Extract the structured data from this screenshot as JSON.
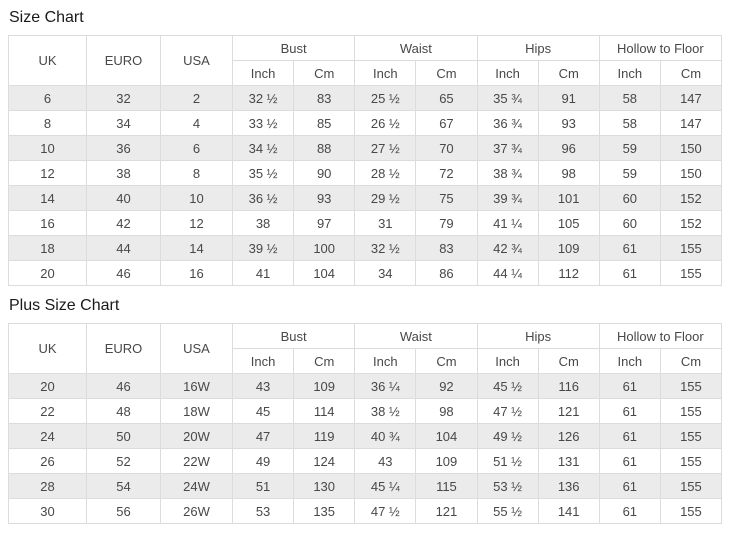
{
  "colors": {
    "stripe_row_bg": "#ebebeb",
    "table_border": "#dcdcdc",
    "cell_text": "#484848",
    "title_text": "#1a1a1a",
    "page_bg": "#ffffff"
  },
  "chart_data": [
    {
      "type": "table",
      "title": "Size Chart",
      "rowspan_columns": [
        "UK",
        "EURO",
        "USA"
      ],
      "group_columns": [
        "Bust",
        "Waist",
        "Hips",
        "Hollow to Floor"
      ],
      "sub_columns": [
        "Inch",
        "Cm"
      ],
      "rows": [
        [
          "6",
          "32",
          "2",
          "32 ½",
          "83",
          "25 ½",
          "65",
          "35 ¾",
          "91",
          "58",
          "147"
        ],
        [
          "8",
          "34",
          "4",
          "33 ½",
          "85",
          "26 ½",
          "67",
          "36 ¾",
          "93",
          "58",
          "147"
        ],
        [
          "10",
          "36",
          "6",
          "34 ½",
          "88",
          "27 ½",
          "70",
          "37 ¾",
          "96",
          "59",
          "150"
        ],
        [
          "12",
          "38",
          "8",
          "35 ½",
          "90",
          "28 ½",
          "72",
          "38 ¾",
          "98",
          "59",
          "150"
        ],
        [
          "14",
          "40",
          "10",
          "36 ½",
          "93",
          "29 ½",
          "75",
          "39 ¾",
          "101",
          "60",
          "152"
        ],
        [
          "16",
          "42",
          "12",
          "38",
          "97",
          "31",
          "79",
          "41 ¼",
          "105",
          "60",
          "152"
        ],
        [
          "18",
          "44",
          "14",
          "39 ½",
          "100",
          "32 ½",
          "83",
          "42 ¾",
          "109",
          "61",
          "155"
        ],
        [
          "20",
          "46",
          "16",
          "41",
          "104",
          "34",
          "86",
          "44 ¼",
          "112",
          "61",
          "155"
        ]
      ]
    },
    {
      "type": "table",
      "title": "Plus Size Chart",
      "rowspan_columns": [
        "UK",
        "EURO",
        "USA"
      ],
      "group_columns": [
        "Bust",
        "Waist",
        "Hips",
        "Hollow to Floor"
      ],
      "sub_columns": [
        "Inch",
        "Cm"
      ],
      "rows": [
        [
          "20",
          "46",
          "16W",
          "43",
          "109",
          "36 ¼",
          "92",
          "45 ½",
          "116",
          "61",
          "155"
        ],
        [
          "22",
          "48",
          "18W",
          "45",
          "114",
          "38 ½",
          "98",
          "47 ½",
          "121",
          "61",
          "155"
        ],
        [
          "24",
          "50",
          "20W",
          "47",
          "119",
          "40 ¾",
          "104",
          "49 ½",
          "126",
          "61",
          "155"
        ],
        [
          "26",
          "52",
          "22W",
          "49",
          "124",
          "43",
          "109",
          "51 ½",
          "131",
          "61",
          "155"
        ],
        [
          "28",
          "54",
          "24W",
          "51",
          "130",
          "45 ¼",
          "115",
          "53 ½",
          "136",
          "61",
          "155"
        ],
        [
          "30",
          "56",
          "26W",
          "53",
          "135",
          "47 ½",
          "121",
          "55 ½",
          "141",
          "61",
          "155"
        ]
      ]
    }
  ]
}
